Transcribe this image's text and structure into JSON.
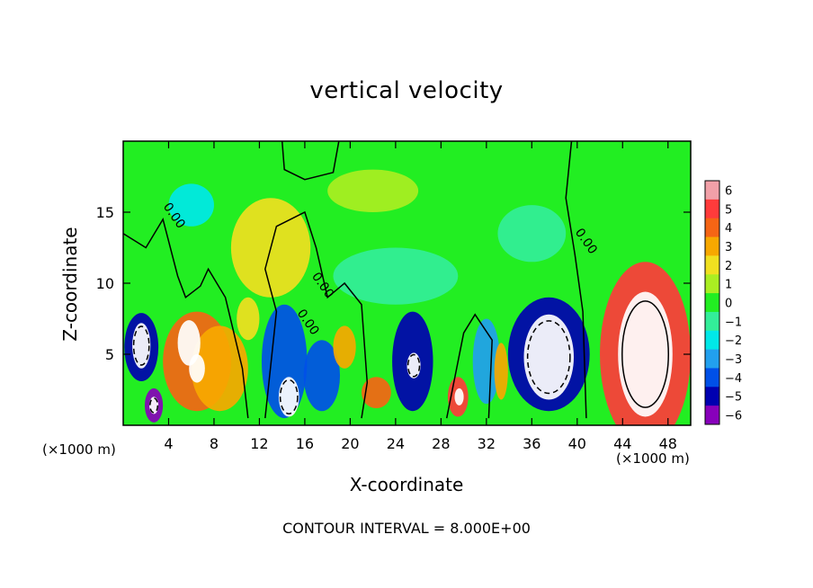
{
  "title": "vertical velocity",
  "xlabel": "X-coordinate",
  "ylabel": "Z-coordinate",
  "x_unit": "(×1000 m)",
  "y_unit": "(×1000 m)",
  "contour_interval": "CONTOUR INTERVAL = 8.000E+00",
  "colors": {
    "p6": "#f2a0a8",
    "p5": "#ff3b3b",
    "p4": "#f56515",
    "p3": "#f7a800",
    "p2": "#f0e020",
    "p1": "#aaee22",
    "z0": "#22ee22",
    "m1": "#33ee99",
    "m2": "#00e8e8",
    "m3": "#22a0ee",
    "m4": "#0050e8",
    "m5": "#0000b0",
    "m6": "#8800bb"
  },
  "chart_data": {
    "type": "heatmap",
    "title": "vertical velocity",
    "xlabel": "X-coordinate",
    "ylabel": "Z-coordinate",
    "xlim": [
      0,
      50
    ],
    "ylim": [
      0,
      20
    ],
    "x_ticks": [
      4,
      8,
      12,
      16,
      20,
      24,
      28,
      32,
      36,
      40,
      44,
      48
    ],
    "y_ticks": [
      5,
      10,
      15
    ],
    "colorbar": {
      "levels": [
        6,
        5,
        4,
        3,
        2,
        1,
        0,
        -1,
        -2,
        -3,
        -4,
        -5,
        -6
      ],
      "labels": [
        "6",
        "5",
        "4",
        "3",
        "2",
        "1",
        "0",
        "−1",
        "−2",
        "−3",
        "−4",
        "−5",
        "−6"
      ]
    },
    "contour_label": "0.00",
    "contour_labels": [
      {
        "text": "0.00",
        "x": 4.2,
        "z": 14.6
      },
      {
        "text": "0.00",
        "x": 17.3,
        "z": 9.7
      },
      {
        "text": "0.00",
        "x": 16.0,
        "z": 7.1
      },
      {
        "text": "0.00",
        "x": 40.5,
        "z": 12.8
      }
    ],
    "features": [
      {
        "x": 1.6,
        "z": 5.5,
        "rx": 1.5,
        "rz": 2.4,
        "value": -5.5
      },
      {
        "x": 1.6,
        "z": 5.6,
        "rx": 0.8,
        "rz": 1.6,
        "value": -9
      },
      {
        "x": 2.7,
        "z": 1.4,
        "rx": 0.8,
        "rz": 1.2,
        "value": -6
      },
      {
        "x": 2.7,
        "z": 1.4,
        "rx": 0.4,
        "rz": 0.6,
        "value": -9
      },
      {
        "x": 6.5,
        "z": 4.5,
        "rx": 3.0,
        "rz": 3.5,
        "value": 4.2
      },
      {
        "x": 8.5,
        "z": 4.0,
        "rx": 2.5,
        "rz": 3.0,
        "value": 3
      },
      {
        "x": 5.8,
        "z": 5.8,
        "rx": 1.0,
        "rz": 1.6,
        "value": 7
      },
      {
        "x": 6.5,
        "z": 4.0,
        "rx": 0.7,
        "rz": 1.0,
        "value": 7
      },
      {
        "x": 11.0,
        "z": 7.5,
        "rx": 1.0,
        "rz": 1.5,
        "value": 2
      },
      {
        "x": 14.2,
        "z": 4.5,
        "rx": 2.0,
        "rz": 4.0,
        "value": -4
      },
      {
        "x": 14.6,
        "z": 2.0,
        "rx": 0.9,
        "rz": 1.4,
        "value": -8
      },
      {
        "x": 17.5,
        "z": 3.5,
        "rx": 1.6,
        "rz": 2.5,
        "value": -4
      },
      {
        "x": 13.0,
        "z": 12.5,
        "rx": 3.5,
        "rz": 3.5,
        "value": 1.5
      },
      {
        "x": 19.5,
        "z": 5.5,
        "rx": 1.0,
        "rz": 1.5,
        "value": 2.5
      },
      {
        "x": 22.3,
        "z": 2.3,
        "rx": 1.3,
        "rz": 1.1,
        "value": 4
      },
      {
        "x": 25.5,
        "z": 4.5,
        "rx": 1.8,
        "rz": 3.5,
        "value": -5
      },
      {
        "x": 25.6,
        "z": 4.2,
        "rx": 0.6,
        "rz": 0.9,
        "value": -8
      },
      {
        "x": 29.5,
        "z": 2.0,
        "rx": 0.9,
        "rz": 1.4,
        "value": 4.5
      },
      {
        "x": 29.6,
        "z": 2.0,
        "rx": 0.4,
        "rz": 0.6,
        "value": 7
      },
      {
        "x": 32.0,
        "z": 4.5,
        "rx": 1.2,
        "rz": 3.0,
        "value": -3
      },
      {
        "x": 33.3,
        "z": 3.8,
        "rx": 0.6,
        "rz": 2.0,
        "value": 3
      },
      {
        "x": 37.5,
        "z": 5.0,
        "rx": 3.6,
        "rz": 4.0,
        "value": -5.3
      },
      {
        "x": 37.5,
        "z": 4.8,
        "rx": 2.2,
        "rz": 3.0,
        "value": -8
      },
      {
        "x": 46.0,
        "z": 5.0,
        "rx": 4.0,
        "rz": 6.5,
        "value": 4.5
      },
      {
        "x": 46.0,
        "z": 5.0,
        "rx": 2.4,
        "rz": 4.4,
        "value": 8
      },
      {
        "x": 6.0,
        "z": 15.5,
        "rx": 2.0,
        "rz": 1.5,
        "value": -1.8
      },
      {
        "x": 24.0,
        "z": 10.5,
        "rx": 5.5,
        "rz": 2.0,
        "value": -1.5
      },
      {
        "x": 36.0,
        "z": 13.5,
        "rx": 3.0,
        "rz": 2.0,
        "value": -1.4
      },
      {
        "x": 22.0,
        "z": 16.5,
        "rx": 4.0,
        "rz": 1.5,
        "value": 0.8
      }
    ]
  }
}
